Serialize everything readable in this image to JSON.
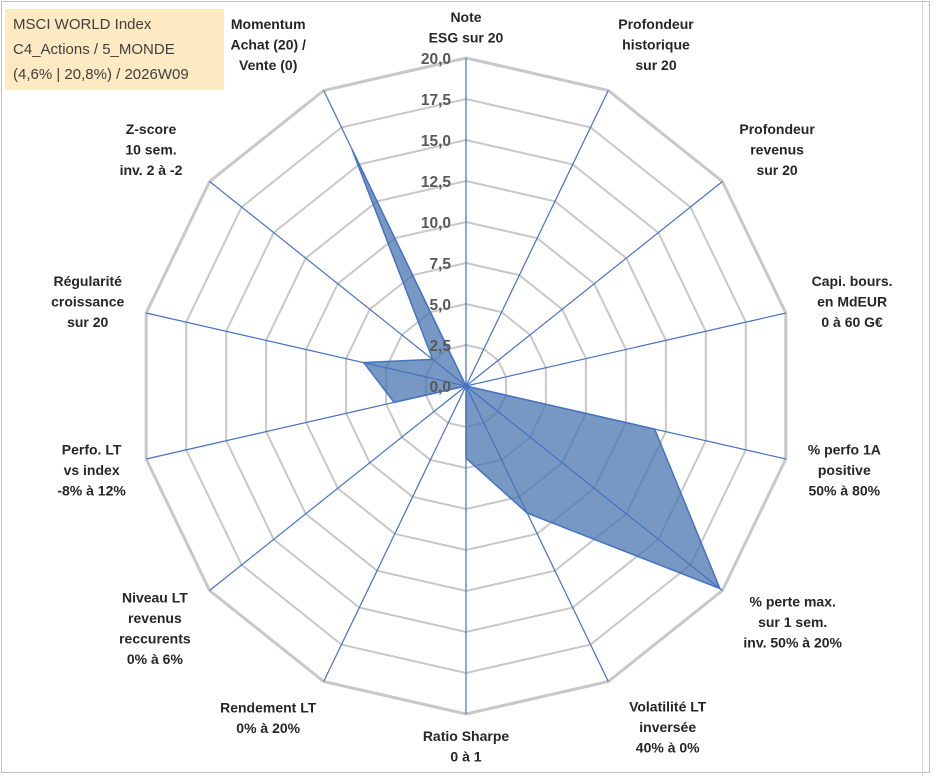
{
  "info_box": {
    "line1": "MSCI WORLD Index",
    "line2": "C4_Actions / 5_MONDE",
    "line3": "(4,6% | 20,8%) / 2026W09"
  },
  "colors": {
    "series_fill": "#4a76ad",
    "series_stroke": "#4472c4",
    "grid": "#c8c8c8",
    "spoke": "#4472c4",
    "info_box_bg": "#fde9c2"
  },
  "chart_data": {
    "type": "radar",
    "rmin": 0,
    "rmax": 20,
    "tick_labels": [
      "0,0",
      "2,5",
      "5,0",
      "7,5",
      "10,0",
      "12,5",
      "15,0",
      "17,5",
      "20,0"
    ],
    "categories": [
      [
        "Note",
        "ESG sur 20"
      ],
      [
        "Profondeur",
        "historique",
        "sur 20"
      ],
      [
        "Profondeur",
        "revenus",
        "sur 20"
      ],
      [
        "Capi. bours.",
        "en MdEUR",
        "0 à 60 G€"
      ],
      [
        "% perfo 1A",
        "positive",
        "50% à 80%"
      ],
      [
        "% perte max.",
        "sur 1 sem.",
        "inv. 50% à 20%"
      ],
      [
        "Volatilité LT",
        "inversée",
        "40% à 0%"
      ],
      [
        "Ratio Sharpe",
        "0 à 1"
      ],
      [
        "Rendement LT",
        "0% à 20%"
      ],
      [
        "Niveau LT",
        "revenus",
        "reccurents",
        "0% à 6%"
      ],
      [
        "Perfo. LT",
        "vs index",
        "-8% à 12%"
      ],
      [
        "Régularité",
        "croissance",
        "sur 20"
      ],
      [
        "Z-score",
        "10 sem.",
        "inv. 2 à -2"
      ],
      [
        "Momentum",
        "Achat (20) /",
        "Vente (0)"
      ]
    ],
    "series": [
      {
        "values": [
          0,
          0,
          0,
          0,
          11.8,
          19.8,
          8.6,
          4.4,
          0,
          0,
          4.5,
          6.4,
          2.6,
          16.0
        ]
      }
    ],
    "grid": true,
    "legend": "none"
  }
}
